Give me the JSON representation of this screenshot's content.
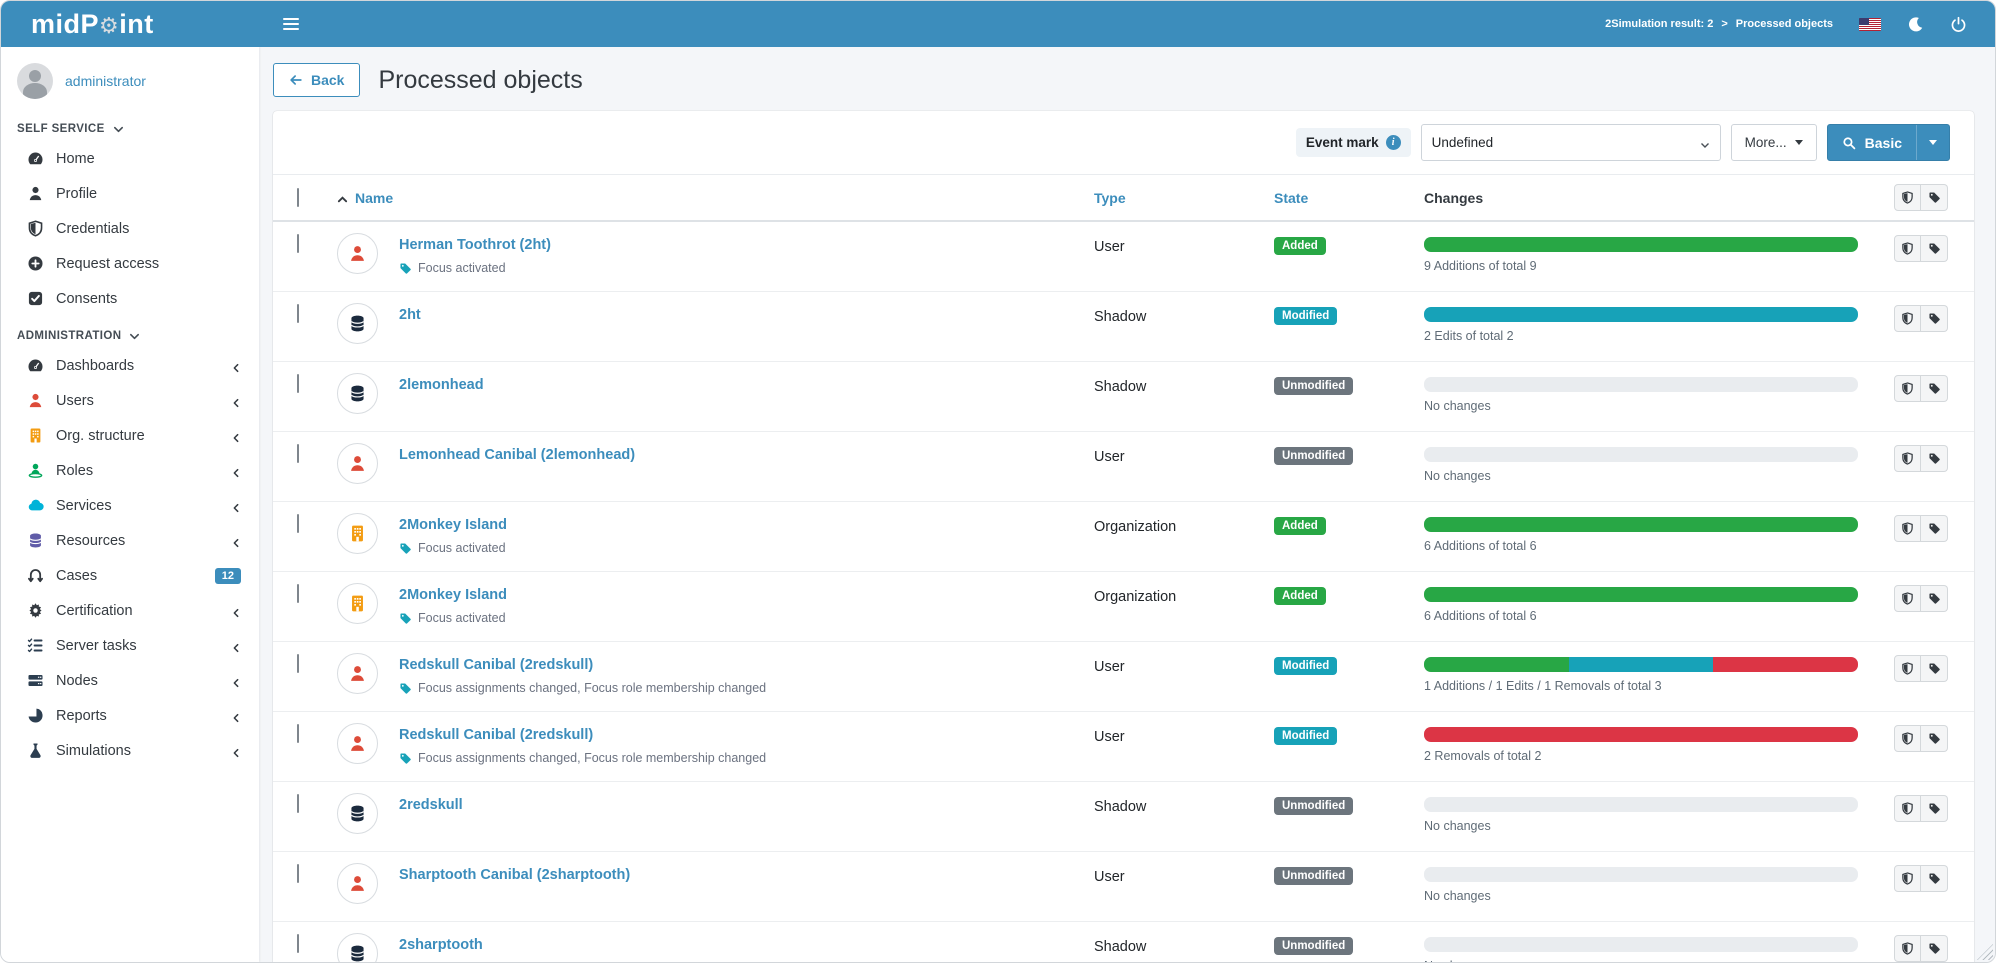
{
  "navbar": {
    "logo_pre": "midP",
    "logo_gear": "⚙",
    "logo_post": "int",
    "breadcrumb": {
      "parent": "2Simulation result: 2",
      "separator": ">",
      "current": "Processed objects"
    }
  },
  "sidebar": {
    "user_name": "administrator",
    "sections": [
      {
        "label": "SELF SERVICE",
        "items": [
          {
            "label": "Home",
            "icon": "gauge",
            "color": "#343a40",
            "chevron": false
          },
          {
            "label": "Profile",
            "icon": "user",
            "color": "#343a40",
            "chevron": false
          },
          {
            "label": "Credentials",
            "icon": "shield",
            "color": "#343a40",
            "chevron": false
          },
          {
            "label": "Request access",
            "icon": "plus-circle",
            "color": "#343a40",
            "chevron": false
          },
          {
            "label": "Consents",
            "icon": "check-square",
            "color": "#343a40",
            "chevron": false
          }
        ]
      },
      {
        "label": "ADMINISTRATION",
        "items": [
          {
            "label": "Dashboards",
            "icon": "gauge",
            "color": "#343a40",
            "chevron": true
          },
          {
            "label": "Users",
            "icon": "user",
            "color": "#dd4b39",
            "chevron": true
          },
          {
            "label": "Org. structure",
            "icon": "building",
            "color": "#f39c12",
            "chevron": true
          },
          {
            "label": "Roles",
            "icon": "roles",
            "color": "#00a65a",
            "chevron": true
          },
          {
            "label": "Services",
            "icon": "cloud",
            "color": "#00b3d8",
            "chevron": true
          },
          {
            "label": "Resources",
            "icon": "database",
            "color": "#605ca8",
            "chevron": true
          },
          {
            "label": "Cases",
            "icon": "cases",
            "color": "#343a40",
            "chevron": false,
            "badge": "12"
          },
          {
            "label": "Certification",
            "icon": "seal",
            "color": "#343a40",
            "chevron": true
          },
          {
            "label": "Server tasks",
            "icon": "tasks",
            "color": "#2c3e50",
            "chevron": true
          },
          {
            "label": "Nodes",
            "icon": "server",
            "color": "#2c3e50",
            "chevron": true
          },
          {
            "label": "Reports",
            "icon": "pie",
            "color": "#2c3e50",
            "chevron": true
          },
          {
            "label": "Simulations",
            "icon": "flask",
            "color": "#2c3e50",
            "chevron": true
          }
        ]
      }
    ]
  },
  "page": {
    "back_label": "Back",
    "title": "Processed objects"
  },
  "filter": {
    "event_mark_label": "Event mark",
    "selected_value": "Undefined",
    "more_label": "More...",
    "search_label": "Basic"
  },
  "table": {
    "headers": {
      "name": "Name",
      "type": "Type",
      "state": "State",
      "changes": "Changes"
    },
    "rows": [
      {
        "name": "Herman Toothrot (2ht)",
        "icon": "user",
        "icon_color": "#dd4b39",
        "subtitle": "Focus activated",
        "type": "User",
        "state": "Added",
        "state_variant": "added",
        "changes": {
          "label": "9 Additions of total 9",
          "segments": [
            {
              "color": "green",
              "pct": 100
            }
          ]
        }
      },
      {
        "name": "2ht",
        "icon": "database",
        "icon_color": "#1b2a3d",
        "subtitle": null,
        "type": "Shadow",
        "state": "Modified",
        "state_variant": "modified",
        "changes": {
          "label": "2 Edits of total 2",
          "segments": [
            {
              "color": "teal",
              "pct": 100
            }
          ]
        }
      },
      {
        "name": "2lemonhead",
        "icon": "database",
        "icon_color": "#1b2a3d",
        "subtitle": null,
        "type": "Shadow",
        "state": "Unmodified",
        "state_variant": "unmodified",
        "changes": {
          "label": "No changes",
          "segments": []
        }
      },
      {
        "name": "Lemonhead Canibal (2lemonhead)",
        "icon": "user",
        "icon_color": "#dd4b39",
        "subtitle": null,
        "type": "User",
        "state": "Unmodified",
        "state_variant": "unmodified",
        "changes": {
          "label": "No changes",
          "segments": []
        }
      },
      {
        "name": "2Monkey Island",
        "icon": "building",
        "icon_color": "#f39c12",
        "subtitle": "Focus activated",
        "type": "Organization",
        "state": "Added",
        "state_variant": "added",
        "changes": {
          "label": "6 Additions of total 6",
          "segments": [
            {
              "color": "green",
              "pct": 100
            }
          ]
        }
      },
      {
        "name": "2Monkey Island",
        "icon": "building",
        "icon_color": "#f39c12",
        "subtitle": "Focus activated",
        "type": "Organization",
        "state": "Added",
        "state_variant": "added",
        "changes": {
          "label": "6 Additions of total 6",
          "segments": [
            {
              "color": "green",
              "pct": 100
            }
          ]
        }
      },
      {
        "name": "Redskull Canibal (2redskull)",
        "icon": "user",
        "icon_color": "#dd4b39",
        "subtitle": "Focus assignments changed, Focus role membership changed",
        "type": "User",
        "state": "Modified",
        "state_variant": "modified",
        "changes": {
          "label": "1 Additions / 1 Edits / 1 Removals of total 3",
          "segments": [
            {
              "color": "green",
              "pct": 33.3
            },
            {
              "color": "teal",
              "pct": 33.4
            },
            {
              "color": "red",
              "pct": 33.3
            }
          ]
        }
      },
      {
        "name": "Redskull Canibal (2redskull)",
        "icon": "user",
        "icon_color": "#dd4b39",
        "subtitle": "Focus assignments changed, Focus role membership changed",
        "type": "User",
        "state": "Modified",
        "state_variant": "modified",
        "changes": {
          "label": "2 Removals of total 2",
          "segments": [
            {
              "color": "red",
              "pct": 100
            }
          ]
        }
      },
      {
        "name": "2redskull",
        "icon": "database",
        "icon_color": "#1b2a3d",
        "subtitle": null,
        "type": "Shadow",
        "state": "Unmodified",
        "state_variant": "unmodified",
        "changes": {
          "label": "No changes",
          "segments": []
        }
      },
      {
        "name": "Sharptooth Canibal (2sharptooth)",
        "icon": "user",
        "icon_color": "#dd4b39",
        "subtitle": null,
        "type": "User",
        "state": "Unmodified",
        "state_variant": "unmodified",
        "changes": {
          "label": "No changes",
          "segments": []
        }
      },
      {
        "name": "2sharptooth",
        "icon": "database",
        "icon_color": "#1b2a3d",
        "subtitle": null,
        "type": "Shadow",
        "state": "Unmodified",
        "state_variant": "unmodified",
        "changes": {
          "label": "No changes",
          "segments": []
        }
      }
    ]
  },
  "colors": {
    "navbar": "#3c8dbc",
    "link": "#3c8dbc",
    "added": "#28a745",
    "modified": "#17a2b8",
    "unmodified": "#6c757d",
    "removal": "#dc3545"
  }
}
